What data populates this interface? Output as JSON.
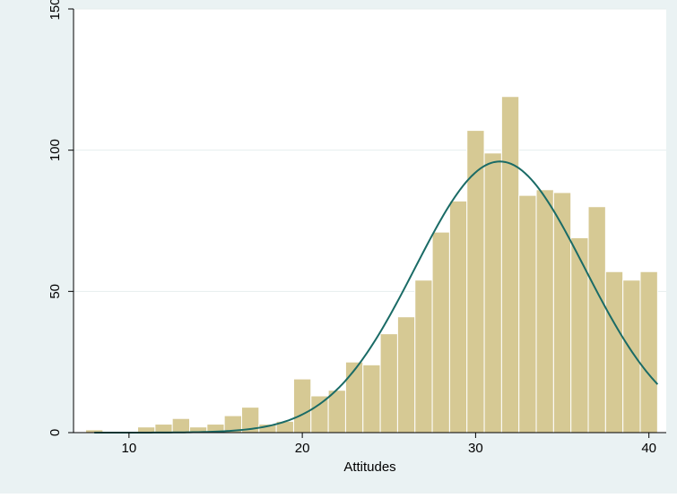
{
  "chart_data": {
    "type": "bar",
    "subtype": "histogram with normal density overlay",
    "xlabel": "Attitudes",
    "ylabel": "",
    "xlim": [
      6.8,
      41
    ],
    "ylim": [
      0,
      150
    ],
    "xticks": [
      10,
      20,
      30,
      40
    ],
    "yticks": [
      0,
      50,
      100,
      150
    ],
    "grid": "horizontal",
    "legend": "none",
    "bin_width": 1,
    "bins": [
      {
        "x": 8,
        "count": 1
      },
      {
        "x": 9,
        "count": 0
      },
      {
        "x": 10,
        "count": 0
      },
      {
        "x": 11,
        "count": 2
      },
      {
        "x": 12,
        "count": 3
      },
      {
        "x": 13,
        "count": 5
      },
      {
        "x": 14,
        "count": 2
      },
      {
        "x": 15,
        "count": 3
      },
      {
        "x": 16,
        "count": 6
      },
      {
        "x": 17,
        "count": 9
      },
      {
        "x": 18,
        "count": 3
      },
      {
        "x": 19,
        "count": 4
      },
      {
        "x": 20,
        "count": 19
      },
      {
        "x": 21,
        "count": 13
      },
      {
        "x": 22,
        "count": 15
      },
      {
        "x": 23,
        "count": 25
      },
      {
        "x": 24,
        "count": 24
      },
      {
        "x": 25,
        "count": 35
      },
      {
        "x": 26,
        "count": 41
      },
      {
        "x": 27,
        "count": 54
      },
      {
        "x": 28,
        "count": 71
      },
      {
        "x": 29,
        "count": 82
      },
      {
        "x": 30,
        "count": 107
      },
      {
        "x": 31,
        "count": 99
      },
      {
        "x": 32,
        "count": 119
      },
      {
        "x": 33,
        "count": 84
      },
      {
        "x": 34,
        "count": 86
      },
      {
        "x": 35,
        "count": 85
      },
      {
        "x": 36,
        "count": 69
      },
      {
        "x": 37,
        "count": 80
      },
      {
        "x": 38,
        "count": 57
      },
      {
        "x": 39,
        "count": 54
      },
      {
        "x": 40,
        "count": 57
      }
    ],
    "normal_curve": {
      "mean": 31.4,
      "sd": 4.9,
      "peak": 96,
      "x_start": 8,
      "x_end": 40.5
    },
    "colors": {
      "outer_background": "#eaf2f3",
      "plot_background": "#ffffff",
      "bar_fill": "#d6c994",
      "bar_stroke": "#c4b578",
      "curve": "#1a6b66",
      "grid": "#e6eeee",
      "axis": "#000000",
      "text": "#000000"
    }
  }
}
